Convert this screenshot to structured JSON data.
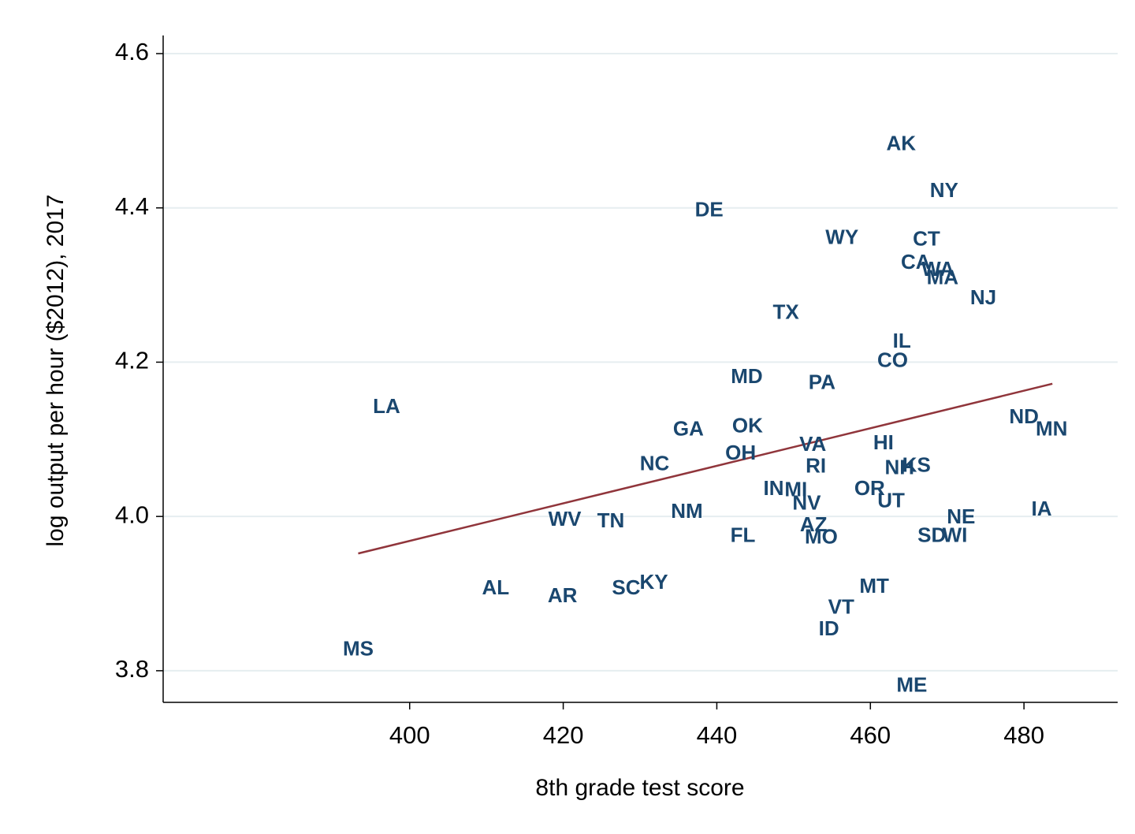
{
  "chart_data": {
    "type": "scatter",
    "x_label": "8th grade test score",
    "y_label": "log output per hour ($2012), 2017",
    "point_labels": [
      "AK",
      "NY",
      "DE",
      "WY",
      "CT",
      "CA",
      "WA",
      "MA",
      "NJ",
      "TX",
      "IL",
      "CO",
      "MD",
      "PA",
      "LA",
      "ND",
      "MN",
      "GA",
      "OK",
      "HI",
      "VA",
      "OH",
      "KS",
      "NH",
      "NC",
      "RI",
      "IN",
      "MI",
      "OR",
      "UT",
      "NV",
      "NM",
      "IA",
      "NE",
      "WV",
      "TN",
      "AZ",
      "SD",
      "WI",
      "FL",
      "MO",
      "KY",
      "MT",
      "AL",
      "SC",
      "AR",
      "VT",
      "ID",
      "MS",
      "ME"
    ],
    "x": [
      464.0,
      469.6,
      439.0,
      456.3,
      467.3,
      465.9,
      468.8,
      469.4,
      474.7,
      449.0,
      464.1,
      462.9,
      443.9,
      453.7,
      397.0,
      480.0,
      483.6,
      436.3,
      444.0,
      461.7,
      452.5,
      443.1,
      466.0,
      463.8,
      431.9,
      452.9,
      447.4,
      450.3,
      459.9,
      462.7,
      451.7,
      436.1,
      482.3,
      471.8,
      420.2,
      426.2,
      452.6,
      468.0,
      471.0,
      443.4,
      453.6,
      431.8,
      460.5,
      411.2,
      428.2,
      419.9,
      456.2,
      454.6,
      393.3,
      465.4
    ],
    "values": [
      4.482,
      4.421,
      4.396,
      4.36,
      4.358,
      4.328,
      4.319,
      4.308,
      4.282,
      4.263,
      4.226,
      4.201,
      4.18,
      4.172,
      4.141,
      4.128,
      4.112,
      4.112,
      4.116,
      4.094,
      4.092,
      4.081,
      4.065,
      4.062,
      4.067,
      4.064,
      4.035,
      4.033,
      4.035,
      4.019,
      4.016,
      4.005,
      4.008,
      3.998,
      3.995,
      3.993,
      3.988,
      3.974,
      3.974,
      3.974,
      3.972,
      3.913,
      3.908,
      3.906,
      3.906,
      3.896,
      3.881,
      3.853,
      3.827,
      3.78
    ],
    "color": "#1a476f",
    "fit_line": {
      "x": [
        393.3,
        483.7
      ],
      "values": [
        3.952,
        4.172
      ],
      "color": "#90353b"
    },
    "xlim": [
      367.9,
      492.2
    ],
    "ylim": [
      3.759,
      4.6235
    ],
    "xticks": [
      400,
      420,
      440,
      460,
      480
    ],
    "yticks": [
      3.8,
      {
        "value": 4,
        "label": "4.0"
      },
      4.2,
      4.4,
      4.6
    ],
    "grid": true
  }
}
